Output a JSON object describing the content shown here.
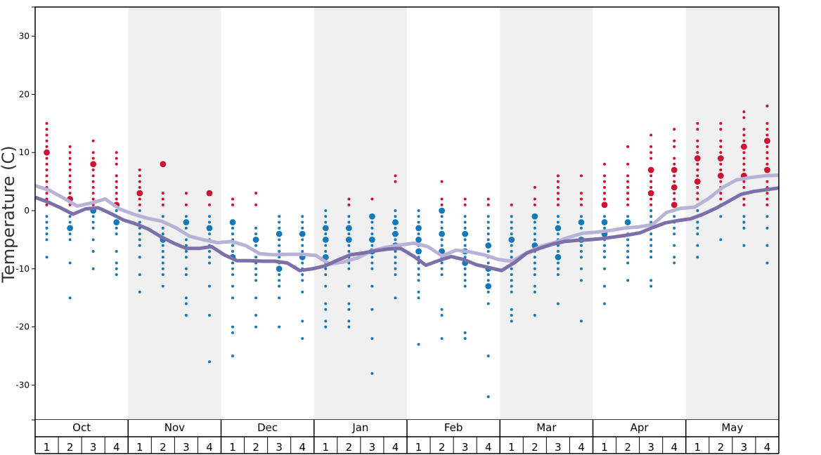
{
  "chart_data": {
    "type": "scatter",
    "title": "",
    "ylabel": "Temperature (C)",
    "xlabel": "",
    "ylim": [
      -36,
      35
    ],
    "yticks": [
      30,
      20,
      10,
      0,
      -10,
      -20,
      -30
    ],
    "ytick_labels": [
      "30",
      "20",
      "10",
      "0",
      "-10",
      "-20",
      "-30"
    ],
    "months": [
      "Oct",
      "Nov",
      "Dec",
      "Jan",
      "Feb",
      "Mar",
      "Apr",
      "May"
    ],
    "weeks": [
      "1",
      "2",
      "3",
      "4"
    ],
    "grid": false,
    "shaded_months": [
      "Nov",
      "Jan",
      "Mar",
      "May"
    ],
    "colors": {
      "warm": "#cc1133",
      "cold": "#1479b8",
      "line_light": "#b8b3d6",
      "line_dark": "#7d70aa",
      "shade": "#f0f0f0"
    },
    "series": [
      {
        "name": "",
        "style": "light",
        "values": [
          4.3,
          3.5,
          2.2,
          0.8,
          1.3,
          2.0,
          0.3,
          -0.6,
          -1.3,
          -1.8,
          -2.9,
          -4.4,
          -5.0,
          -5.5,
          -5.3,
          -6.0,
          -7.4,
          -7.6,
          -7.5,
          -7.5,
          -7.7,
          -9.2,
          -8.8,
          -8.1,
          -6.9,
          -6.3,
          -5.9,
          -5.6,
          -6.2,
          -7.8,
          -6.8,
          -7.1,
          -7.6,
          -8.4,
          -8.7,
          -7.3,
          -6.2,
          -5.5,
          -4.6,
          -3.9,
          -3.7,
          -3.4,
          -3.0,
          -2.8,
          -2.4,
          -0.3,
          0.4,
          0.6,
          2.1,
          4.0,
          5.3,
          5.7,
          6.0,
          6.1
        ]
      },
      {
        "name": "",
        "style": "dark",
        "values": [
          2.3,
          1.5,
          0.5,
          -0.6,
          0.3,
          0.5,
          -0.5,
          -1.6,
          -2.3,
          -3.2,
          -4.5,
          -5.6,
          -6.5,
          -6.5,
          -6.2,
          -7.6,
          -8.6,
          -8.6,
          -8.7,
          -8.7,
          -9.0,
          -10.3,
          -10.0,
          -9.5,
          -8.5,
          -7.6,
          -7.3,
          -6.9,
          -6.6,
          -6.5,
          -7.8,
          -9.4,
          -8.6,
          -7.9,
          -8.4,
          -9.3,
          -9.8,
          -10.3,
          -9.0,
          -7.3,
          -6.5,
          -5.8,
          -5.3,
          -5.1,
          -5.0,
          -4.8,
          -4.5,
          -4.2,
          -3.8,
          -2.9,
          -2.1,
          -1.7,
          -1.4,
          -0.6,
          0.4,
          1.6,
          2.8,
          3.3,
          3.6,
          3.9
        ]
      },
      {
        "name": "",
        "style": "dots",
        "weeks_data": [
          {
            "warm": [
              15,
              14,
              13,
              12,
              11,
              10,
              9,
              8,
              7,
              6,
              5,
              4,
              3,
              2,
              1
            ],
            "cold": [
              -1,
              -2,
              -3,
              -4,
              -5,
              -8
            ],
            "big_warm": [
              10
            ],
            "big_cold": []
          },
          {
            "warm": [
              11,
              10,
              9,
              8,
              7,
              6,
              5,
              4,
              3,
              2,
              1
            ],
            "cold": [
              -1,
              -2,
              -3,
              -4,
              -5,
              -9,
              -15
            ],
            "big_warm": [
              2
            ],
            "big_cold": [
              -3
            ]
          },
          {
            "warm": [
              12,
              10,
              9,
              8,
              7,
              6,
              5,
              4,
              3,
              2,
              1
            ],
            "cold": [
              0,
              -1,
              -2,
              -3,
              -5,
              -7,
              -10
            ],
            "big_warm": [
              8
            ],
            "big_cold": [
              0
            ]
          },
          {
            "warm": [
              10,
              9,
              8,
              6,
              5,
              4,
              3,
              2,
              1
            ],
            "cold": [
              0,
              -1,
              -2,
              -3,
              -4,
              -7,
              -9,
              -10,
              -11
            ],
            "big_warm": [
              1
            ],
            "big_cold": [
              -2
            ]
          },
          {
            "warm": [
              7,
              6,
              5,
              4,
              3,
              2,
              1
            ],
            "cold": [
              0,
              -1,
              -2,
              -3,
              -4,
              -5,
              -6,
              -8,
              -11,
              -14
            ],
            "big_warm": [
              3
            ],
            "big_cold": []
          },
          {
            "warm": [
              8,
              3,
              2,
              1
            ],
            "cold": [
              -1,
              -2,
              -3,
              -4,
              -5,
              -6,
              -7,
              -8,
              -9,
              -10,
              -11,
              -13
            ],
            "big_warm": [
              8
            ],
            "big_cold": [
              -5
            ]
          },
          {
            "warm": [
              3,
              1
            ],
            "cold": [
              -1,
              -2,
              -3,
              -4,
              -5,
              -6,
              -7,
              -8,
              -10,
              -11,
              -15,
              -16,
              -18
            ],
            "big_warm": [],
            "big_cold": [
              -2
            ]
          },
          {
            "warm": [
              3,
              1
            ],
            "cold": [
              -1,
              -2,
              -3,
              -4,
              -5,
              -6,
              -7,
              -8,
              -9,
              -13,
              -18,
              -26
            ],
            "big_warm": [
              3
            ],
            "big_cold": [
              -3
            ]
          },
          {
            "warm": [
              2,
              1
            ],
            "cold": [
              -2,
              -3,
              -4,
              -5,
              -6,
              -7,
              -8,
              -9,
              -10,
              -11,
              -13,
              -15,
              -20,
              -21,
              -25
            ],
            "big_warm": [],
            "big_cold": [
              -2,
              -8
            ]
          },
          {
            "warm": [
              3,
              1
            ],
            "cold": [
              -3,
              -4,
              -5,
              -6,
              -7,
              -8,
              -9,
              -10,
              -11,
              -12,
              -15,
              -18,
              -20
            ],
            "big_warm": [],
            "big_cold": [
              -5
            ]
          },
          {
            "warm": [],
            "cold": [
              -1,
              -2,
              -3,
              -4,
              -5,
              -6,
              -7,
              -8,
              -9,
              -10,
              -11,
              -12,
              -13,
              -15,
              -20
            ],
            "big_warm": [],
            "big_cold": [
              -4,
              -10
            ]
          },
          {
            "warm": [],
            "cold": [
              -1,
              -2,
              -3,
              -4,
              -5,
              -6,
              -7,
              -8,
              -9,
              -10,
              -11,
              -12,
              -14,
              -19,
              -22
            ],
            "big_warm": [],
            "big_cold": [
              -4,
              -8
            ]
          },
          {
            "warm": [],
            "cold": [
              0,
              -1,
              -2,
              -3,
              -4,
              -5,
              -6,
              -7,
              -8,
              -9,
              -10,
              -11,
              -13,
              -16,
              -17,
              -19,
              -20
            ],
            "big_warm": [],
            "big_cold": [
              -3,
              -5,
              -8
            ]
          },
          {
            "warm": [
              2,
              1
            ],
            "cold": [
              -1,
              -2,
              -3,
              -4,
              -5,
              -6,
              -7,
              -8,
              -9,
              -10,
              -13,
              -16,
              -17,
              -19,
              -20
            ],
            "big_warm": [],
            "big_cold": [
              -3,
              -5
            ]
          },
          {
            "warm": [
              2
            ],
            "cold": [
              -1,
              -2,
              -3,
              -4,
              -5,
              -6,
              -7,
              -8,
              -9,
              -10,
              -13,
              -17,
              -22,
              -28
            ],
            "big_warm": [],
            "big_cold": [
              -1,
              -5,
              -7
            ]
          },
          {
            "warm": [
              6,
              5
            ],
            "cold": [
              0,
              -1,
              -2,
              -3,
              -4,
              -5,
              -6,
              -7,
              -8,
              -9,
              -10,
              -11,
              -15
            ],
            "big_warm": [],
            "big_cold": [
              -2,
              -4,
              -6
            ]
          },
          {
            "warm": [],
            "cold": [
              0,
              -1,
              -2,
              -3,
              -4,
              -5,
              -6,
              -7,
              -8,
              -9,
              -10,
              -11,
              -12,
              -14,
              -15,
              -23
            ],
            "big_warm": [],
            "big_cold": [
              -3,
              -5,
              -7
            ]
          },
          {
            "warm": [
              5,
              2,
              1
            ],
            "cold": [
              0,
              -1,
              -2,
              -3,
              -4,
              -5,
              -6,
              -7,
              -8,
              -9,
              -10,
              -11,
              -17,
              -18,
              -22
            ],
            "big_warm": [],
            "big_cold": [
              0,
              -4,
              -7
            ]
          },
          {
            "warm": [
              2,
              1
            ],
            "cold": [
              -1,
              -2,
              -3,
              -4,
              -5,
              -6,
              -7,
              -8,
              -9,
              -10,
              -11,
              -12,
              -13,
              -21,
              -22
            ],
            "big_warm": [],
            "big_cold": [
              -4,
              -7,
              -9
            ]
          },
          {
            "warm": [
              2,
              1
            ],
            "cold": [
              -1,
              -2,
              -3,
              -4,
              -5,
              -6,
              -7,
              -8,
              -9,
              -10,
              -11,
              -12,
              -13,
              -14,
              -16,
              -25,
              -32
            ],
            "big_warm": [],
            "big_cold": [
              -6,
              -10,
              -13
            ]
          },
          {
            "warm": [
              1
            ],
            "cold": [
              -1,
              -2,
              -3,
              -4,
              -5,
              -6,
              -7,
              -8,
              -9,
              -10,
              -11,
              -12,
              -13,
              -14,
              -17,
              -18,
              -19
            ],
            "big_warm": [],
            "big_cold": [
              -5
            ]
          },
          {
            "warm": [
              4,
              2,
              1
            ],
            "cold": [
              -1,
              -2,
              -3,
              -4,
              -5,
              -6,
              -7,
              -8,
              -9,
              -10,
              -11,
              -13,
              -14,
              -18
            ],
            "big_warm": [],
            "big_cold": [
              -1,
              -6
            ]
          },
          {
            "warm": [
              6,
              5,
              4,
              3,
              2,
              1
            ],
            "cold": [
              -1,
              -2,
              -3,
              -4,
              -5,
              -6,
              -7,
              -8,
              -9,
              -10,
              -11,
              -16
            ],
            "big_warm": [],
            "big_cold": [
              -3,
              -8
            ]
          },
          {
            "warm": [
              6,
              3,
              2,
              1
            ],
            "cold": [
              -1,
              -2,
              -3,
              -4,
              -5,
              -6,
              -7,
              -8,
              -10,
              -12,
              -19
            ],
            "big_warm": [],
            "big_cold": [
              -2,
              -5
            ]
          },
          {
            "warm": [
              8,
              6,
              5,
              4,
              3,
              2,
              1
            ],
            "cold": [
              -1,
              -2,
              -3,
              -4,
              -5,
              -6,
              -7,
              -8,
              -10,
              -13,
              -16
            ],
            "big_warm": [
              1
            ],
            "big_cold": [
              -2,
              -4
            ]
          },
          {
            "warm": [
              11,
              8,
              6,
              5,
              4,
              3,
              2,
              1
            ],
            "cold": [
              -1,
              -2,
              -3,
              -4,
              -5,
              -6,
              -7,
              -8,
              -9,
              -12
            ],
            "big_warm": [],
            "big_cold": [
              -2
            ]
          },
          {
            "warm": [
              13,
              11,
              10,
              9,
              7,
              6,
              5,
              4,
              3,
              2,
              1
            ],
            "cold": [
              0,
              -1,
              -2,
              -3,
              -4,
              -5,
              -6,
              -7,
              -8,
              -12,
              -13
            ],
            "big_warm": [
              7,
              3
            ],
            "big_cold": []
          },
          {
            "warm": [
              14,
              12,
              11,
              9,
              8,
              7,
              6,
              5,
              4,
              3,
              2,
              1
            ],
            "cold": [
              0,
              -1,
              -2,
              -3,
              -4,
              -6,
              -8,
              -9
            ],
            "big_warm": [
              7,
              4,
              1
            ],
            "big_cold": []
          },
          {
            "warm": [
              15,
              14,
              12,
              11,
              10,
              9,
              8,
              7,
              6,
              5,
              4,
              3,
              2,
              1
            ],
            "cold": [
              0,
              -1,
              -2,
              -3,
              -4,
              -6,
              -8
            ],
            "big_warm": [
              9,
              5
            ],
            "big_cold": []
          },
          {
            "warm": [
              15,
              14,
              12,
              11,
              10,
              9,
              8,
              7,
              6,
              5,
              4,
              3,
              2,
              1
            ],
            "cold": [
              -1,
              -5
            ],
            "big_warm": [
              9,
              6
            ],
            "big_cold": []
          },
          {
            "warm": [
              17,
              16,
              14,
              13,
              12,
              11,
              10,
              9,
              8,
              7,
              6,
              5,
              4,
              3,
              2,
              1
            ],
            "cold": [
              -1,
              -2,
              -3,
              -6
            ],
            "big_warm": [
              11,
              6
            ],
            "big_cold": []
          },
          {
            "warm": [
              18,
              15,
              14,
              13,
              12,
              11,
              10,
              9,
              8,
              7,
              6,
              5,
              4,
              3,
              2,
              1
            ],
            "cold": [
              -1,
              -3,
              -6,
              -9
            ],
            "big_warm": [
              12,
              7
            ],
            "big_cold": []
          }
        ]
      }
    ]
  }
}
